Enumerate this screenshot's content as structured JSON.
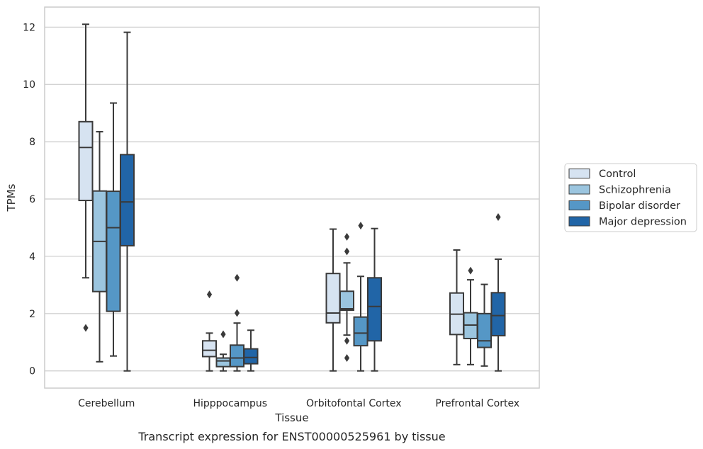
{
  "caption": "Transcript expression for ENST00000525961 by tissue",
  "chart_data": {
    "type": "box",
    "xlabel": "Tissue",
    "ylabel": "TPMs",
    "ylim": [
      -0.6,
      12.7
    ],
    "yticks": [
      0,
      2,
      4,
      6,
      8,
      10,
      12
    ],
    "grid": "horizontal",
    "legend_position": "right",
    "categories": [
      "Cerebellum",
      "Hipppocampus",
      "Orbitofontal Cortex",
      "Prefrontal Cortex"
    ],
    "series": [
      {
        "name": "Control",
        "color": "#d6e3f1",
        "boxes": [
          {
            "whisker_low": 3.25,
            "q1": 5.95,
            "median": 7.8,
            "q3": 8.7,
            "whisker_high": 12.1,
            "outliers": [
              1.5
            ]
          },
          {
            "whisker_low": 0.0,
            "q1": 0.5,
            "median": 0.72,
            "q3": 1.05,
            "whisker_high": 1.32,
            "outliers": [
              2.67
            ]
          },
          {
            "whisker_low": 0.0,
            "q1": 1.68,
            "median": 2.02,
            "q3": 3.4,
            "whisker_high": 4.95,
            "outliers": []
          },
          {
            "whisker_low": 0.22,
            "q1": 1.27,
            "median": 1.98,
            "q3": 2.72,
            "whisker_high": 4.22,
            "outliers": []
          }
        ]
      },
      {
        "name": "Schizophrenia",
        "color": "#9bc5df",
        "boxes": [
          {
            "whisker_low": 0.32,
            "q1": 2.77,
            "median": 4.52,
            "q3": 6.28,
            "whisker_high": 8.35,
            "outliers": []
          },
          {
            "whisker_low": 0.0,
            "q1": 0.15,
            "median": 0.35,
            "q3": 0.45,
            "whisker_high": 0.58,
            "outliers": [
              1.28
            ]
          },
          {
            "whisker_low": 1.25,
            "q1": 2.12,
            "median": 2.17,
            "q3": 2.78,
            "whisker_high": 3.77,
            "outliers": [
              4.68,
              4.17,
              1.05,
              0.45
            ]
          },
          {
            "whisker_low": 0.22,
            "q1": 1.13,
            "median": 1.6,
            "q3": 2.03,
            "whisker_high": 3.18,
            "outliers": [
              3.5
            ]
          }
        ]
      },
      {
        "name": "Bipolar disorder",
        "color": "#5597c6",
        "boxes": [
          {
            "whisker_low": 0.52,
            "q1": 2.08,
            "median": 5.0,
            "q3": 6.27,
            "whisker_high": 9.35,
            "outliers": []
          },
          {
            "whisker_low": 0.0,
            "q1": 0.15,
            "median": 0.45,
            "q3": 0.9,
            "whisker_high": 1.67,
            "outliers": [
              3.25,
              2.02
            ]
          },
          {
            "whisker_low": 0.0,
            "q1": 0.88,
            "median": 1.32,
            "q3": 1.88,
            "whisker_high": 3.3,
            "outliers": [
              5.07
            ]
          },
          {
            "whisker_low": 0.17,
            "q1": 0.82,
            "median": 1.05,
            "q3": 2.0,
            "whisker_high": 3.02,
            "outliers": []
          }
        ]
      },
      {
        "name": "Major depression",
        "color": "#2165a7",
        "boxes": [
          {
            "whisker_low": 0.0,
            "q1": 4.37,
            "median": 5.9,
            "q3": 7.55,
            "whisker_high": 11.82,
            "outliers": []
          },
          {
            "whisker_low": 0.0,
            "q1": 0.25,
            "median": 0.47,
            "q3": 0.77,
            "whisker_high": 1.42,
            "outliers": []
          },
          {
            "whisker_low": 0.0,
            "q1": 1.05,
            "median": 2.25,
            "q3": 3.25,
            "whisker_high": 4.97,
            "outliers": []
          },
          {
            "whisker_low": 0.0,
            "q1": 1.23,
            "median": 1.93,
            "q3": 2.73,
            "whisker_high": 3.9,
            "outliers": [
              5.37
            ]
          }
        ]
      }
    ]
  }
}
